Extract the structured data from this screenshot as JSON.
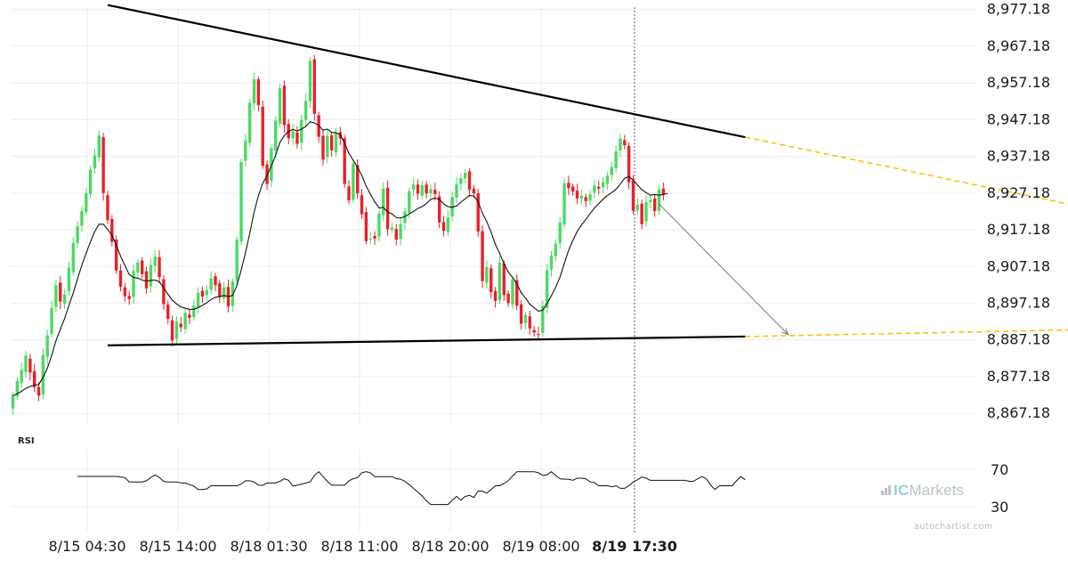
{
  "chart_data": {
    "type": "candlestick",
    "price_axis": {
      "range": [
        8862.18,
        8980.18
      ],
      "tick_labels": [
        "8,977.18",
        "8,967.18",
        "8,957.18",
        "8,947.18",
        "8,937.18",
        "8,927.18",
        "8,917.18",
        "8,907.18",
        "8,897.18",
        "8,887.18",
        "8,877.18",
        "8,867.18"
      ]
    },
    "time_axis": {
      "tick_labels": [
        "8/15 04:30",
        "8/15 14:00",
        "8/18 01:30",
        "8/18 11:00",
        "8/18 20:00",
        "8/19 08:00",
        "8/19 17:30"
      ],
      "current_label": "8/19 17:30"
    },
    "candles": [
      [
        8868.5,
        8872.2,
        8866.8,
        8873.0
      ],
      [
        8871.8,
        8876.0,
        8870.9,
        8877.1
      ],
      [
        8875.5,
        8879.0,
        8874.0,
        8881.0
      ],
      [
        8878.4,
        8882.9,
        8876.9,
        8884.2
      ],
      [
        8882.1,
        8878.3,
        8876.1,
        8883.4
      ],
      [
        8878.7,
        8874.3,
        8873.0,
        8880.6
      ],
      [
        8874.4,
        8872.0,
        8870.5,
        8875.7
      ],
      [
        8872.3,
        8883.2,
        8871.0,
        8884.8
      ],
      [
        8882.6,
        8888.4,
        8880.5,
        8890.1
      ],
      [
        8888.9,
        8895.9,
        8887.9,
        8897.8
      ],
      [
        8896.2,
        8902.1,
        8894.8,
        8903.6
      ],
      [
        8902.8,
        8897.6,
        8895.6,
        8904.6
      ],
      [
        8897.1,
        8899.6,
        8895.6,
        8900.9
      ],
      [
        8900.5,
        8906.8,
        8899.2,
        8908.6
      ],
      [
        8905.6,
        8913.6,
        8904.6,
        8915.2
      ],
      [
        8913.6,
        8918.1,
        8912.3,
        8919.6
      ],
      [
        8918.3,
        8922.3,
        8916.6,
        8923.7
      ],
      [
        8922.0,
        8927.1,
        8921.1,
        8928.5
      ],
      [
        8926.9,
        8933.6,
        8925.7,
        8934.6
      ],
      [
        8933.9,
        8937.5,
        8932.4,
        8939.3
      ],
      [
        8936.9,
        8942.9,
        8935.6,
        8944.3
      ],
      [
        8942.4,
        8927.2,
        8925.1,
        8943.6
      ],
      [
        8926.6,
        8919.8,
        8918.7,
        8927.8
      ],
      [
        8920.1,
        8913.9,
        8912.7,
        8921.2
      ],
      [
        8914.5,
        8906.1,
        8905.2,
        8915.6
      ],
      [
        8906.1,
        8901.7,
        8900.4,
        8907.8
      ],
      [
        8901.5,
        8899.1,
        8897.6,
        8902.6
      ],
      [
        8899.2,
        8898.3,
        8896.7,
        8900.5
      ],
      [
        8898.9,
        8906.0,
        8897.0,
        8907.7
      ],
      [
        8905.5,
        8908.3,
        8903.8,
        8909.2
      ],
      [
        8908.8,
        8905.1,
        8903.9,
        8909.7
      ],
      [
        8905.9,
        8901.2,
        8899.7,
        8907.2
      ],
      [
        8901.8,
        8907.6,
        8900.0,
        8909.5
      ],
      [
        8907.4,
        8909.8,
        8905.5,
        8911.7
      ],
      [
        8909.7,
        8904.3,
        8902.6,
        8911.6
      ],
      [
        8903.7,
        8896.9,
        8895.4,
        8904.8
      ],
      [
        8896.8,
        8892.9,
        8891.4,
        8897.9
      ],
      [
        8892.5,
        8887.0,
        8885.4,
        8893.8
      ],
      [
        8887.5,
        8892.2,
        8886.2,
        8893.6
      ],
      [
        8891.6,
        8890.6,
        8889.3,
        8893.4
      ],
      [
        8890.1,
        8894.6,
        8888.9,
        8895.6
      ],
      [
        8894.1,
        8893.2,
        8891.5,
        8895.5
      ],
      [
        8893.4,
        8896.5,
        8892.4,
        8898.1
      ],
      [
        8895.9,
        8900.0,
        8894.3,
        8901.5
      ],
      [
        8900.6,
        8899.0,
        8897.2,
        8901.8
      ],
      [
        8899.4,
        8900.8,
        8897.8,
        8902.1
      ],
      [
        8900.8,
        8904.0,
        8899.5,
        8905.9
      ],
      [
        8904.5,
        8902.1,
        8900.5,
        8905.5
      ],
      [
        8902.6,
        8898.8,
        8897.3,
        8903.5
      ],
      [
        8898.5,
        8901.5,
        8897.3,
        8903.0
      ],
      [
        8901.6,
        8896.3,
        8894.6,
        8903.6
      ],
      [
        8896.4,
        8903.1,
        8894.8,
        8903.9
      ],
      [
        8903.2,
        8914.5,
        8901.9,
        8915.4
      ],
      [
        8914.0,
        8935.6,
        8913.0,
        8936.6
      ],
      [
        8936.0,
        8941.5,
        8934.4,
        8943.3
      ],
      [
        8940.9,
        8951.8,
        8939.8,
        8952.8
      ],
      [
        8951.6,
        8958.2,
        8949.7,
        8960.0
      ],
      [
        8958.2,
        8951.1,
        8949.4,
        8958.9
      ],
      [
        8950.7,
        8934.6,
        8933.8,
        8952.4
      ],
      [
        8935.0,
        8929.7,
        8928.1,
        8936.1
      ],
      [
        8930.5,
        8939.4,
        8928.8,
        8940.4
      ],
      [
        8938.8,
        8946.9,
        8936.7,
        8948.1
      ],
      [
        8946.0,
        8955.7,
        8945.1,
        8957.0
      ],
      [
        8956.4,
        8945.7,
        8943.6,
        8957.8
      ],
      [
        8946.0,
        8942.1,
        8940.5,
        8947.3
      ],
      [
        8942.1,
        8944.0,
        8940.2,
        8946.0
      ],
      [
        8943.7,
        8940.6,
        8939.3,
        8945.4
      ],
      [
        8940.9,
        8947.1,
        8938.8,
        8948.6
      ],
      [
        8947.1,
        8952.3,
        8945.2,
        8954.3
      ],
      [
        8952.2,
        8963.2,
        8950.4,
        8964.1
      ],
      [
        8963.6,
        8948.8,
        8946.9,
        8964.8
      ],
      [
        8948.4,
        8942.5,
        8940.9,
        8949.3
      ],
      [
        8942.8,
        8936.3,
        8934.6,
        8944.5
      ],
      [
        8937.0,
        8942.8,
        8935.3,
        8944.4
      ],
      [
        8942.9,
        8938.8,
        8937.1,
        8943.8
      ],
      [
        8938.3,
        8943.5,
        8937.0,
        8944.9
      ],
      [
        8943.8,
        8942.0,
        8940.2,
        8945.2
      ],
      [
        8942.1,
        8929.7,
        8928.6,
        8943.0
      ],
      [
        8929.0,
        8925.2,
        8924.2,
        8930.7
      ],
      [
        8925.4,
        8935.2,
        8924.5,
        8936.3
      ],
      [
        8934.8,
        8927.1,
        8925.6,
        8936.4
      ],
      [
        8926.6,
        8921.4,
        8920.1,
        8928.3
      ],
      [
        8922.0,
        8914.1,
        8913.2,
        8923.4
      ],
      [
        8914.6,
        8914.8,
        8913.2,
        8916.7
      ],
      [
        8915.5,
        8914.8,
        8913.1,
        8916.8
      ],
      [
        8915.3,
        8921.6,
        8914.0,
        8922.5
      ],
      [
        8921.2,
        8928.4,
        8919.5,
        8930.1
      ],
      [
        8928.6,
        8917.3,
        8915.6,
        8930.6
      ],
      [
        8917.2,
        8917.8,
        8916.3,
        8919.2
      ],
      [
        8917.4,
        8914.5,
        8912.9,
        8918.8
      ],
      [
        8914.7,
        8918.8,
        8913.0,
        8920.2
      ],
      [
        8919.0,
        8922.2,
        8917.1,
        8923.2
      ],
      [
        8921.8,
        8927.7,
        8920.2,
        8928.7
      ],
      [
        8928.0,
        8929.5,
        8926.3,
        8931.3
      ],
      [
        8929.5,
        8927.0,
        8925.4,
        8930.9
      ],
      [
        8926.5,
        8929.3,
        8925.5,
        8930.6
      ],
      [
        8929.5,
        8927.1,
        8925.7,
        8930.5
      ],
      [
        8927.1,
        8928.2,
        8926.0,
        8929.5
      ],
      [
        8928.1,
        8926.9,
        8925.2,
        8930.1
      ],
      [
        8926.3,
        8919.2,
        8917.6,
        8927.7
      ],
      [
        8919.3,
        8916.9,
        8915.4,
        8921.0
      ],
      [
        8916.6,
        8920.5,
        8915.4,
        8922.5
      ],
      [
        8920.9,
        8926.1,
        8919.5,
        8927.5
      ],
      [
        8926.0,
        8929.5,
        8924.5,
        8931.5
      ],
      [
        8929.7,
        8931.2,
        8928.0,
        8932.4
      ],
      [
        8931.2,
        8932.7,
        8929.8,
        8933.8
      ],
      [
        8933.1,
        8928.1,
        8926.2,
        8934.0
      ],
      [
        8928.4,
        8927.1,
        8925.8,
        8929.4
      ],
      [
        8927.1,
        8916.7,
        8915.3,
        8928.4
      ],
      [
        8916.8,
        8903.2,
        8901.3,
        8918.4
      ],
      [
        8902.7,
        8907.0,
        8901.1,
        8908.8
      ],
      [
        8906.7,
        8900.2,
        8898.5,
        8907.8
      ],
      [
        8900.5,
        8897.8,
        8896.0,
        8901.6
      ],
      [
        8898.0,
        8908.2,
        8896.9,
        8910.1
      ],
      [
        8908.0,
        8899.4,
        8897.8,
        8908.9
      ],
      [
        8899.8,
        8897.2,
        8896.2,
        8900.6
      ],
      [
        8896.8,
        8903.6,
        8895.5,
        8904.5
      ],
      [
        8903.5,
        8896.5,
        8895.3,
        8905.1
      ],
      [
        8896.9,
        8891.6,
        8890.0,
        8898.1
      ],
      [
        8891.8,
        8894.0,
        8890.1,
        8894.9
      ],
      [
        8893.6,
        8890.3,
        8888.6,
        8895.2
      ],
      [
        8889.9,
        8889.2,
        8888.1,
        8891.0
      ],
      [
        8888.8,
        8888.7,
        8887.5,
        8890.8
      ],
      [
        8889.1,
        8896.5,
        8888.0,
        8897.9
      ],
      [
        8895.9,
        8906.2,
        8894.4,
        8907.8
      ],
      [
        8906.4,
        8910.2,
        8904.4,
        8911.5
      ],
      [
        8910.0,
        8913.4,
        8908.6,
        8914.7
      ],
      [
        8913.5,
        8919.2,
        8911.9,
        8920.6
      ],
      [
        8918.6,
        8929.8,
        8917.7,
        8931.1
      ],
      [
        8930.0,
        8928.5,
        8926.6,
        8931.9
      ],
      [
        8929.0,
        8927.6,
        8926.4,
        8929.8
      ],
      [
        8927.8,
        8925.7,
        8924.2,
        8929.7
      ],
      [
        8925.7,
        8926.5,
        8924.0,
        8928.1
      ],
      [
        8926.1,
        8925.0,
        8923.3,
        8927.0
      ],
      [
        8925.1,
        8926.8,
        8923.8,
        8928.0
      ],
      [
        8927.3,
        8929.2,
        8925.8,
        8930.6
      ],
      [
        8928.9,
        8928.4,
        8926.7,
        8930.6
      ],
      [
        8928.8,
        8930.2,
        8927.1,
        8931.5
      ],
      [
        8929.7,
        8931.9,
        8928.0,
        8933.0
      ],
      [
        8932.1,
        8934.3,
        8930.4,
        8935.7
      ],
      [
        8934.0,
        8938.5,
        8932.7,
        8940.1
      ],
      [
        8938.8,
        8942.0,
        8937.0,
        8943.4
      ],
      [
        8941.6,
        8940.2,
        8939.1,
        8943.0
      ],
      [
        8940.0,
        8930.1,
        8928.3,
        8941.0
      ],
      [
        8930.6,
        8922.4,
        8921.4,
        8932.1
      ],
      [
        8922.4,
        8924.0,
        8921.3,
        8925.9
      ],
      [
        8924.3,
        8918.7,
        8917.4,
        8925.4
      ],
      [
        8919.5,
        8924.7,
        8918.0,
        8926.4
      ],
      [
        8924.7,
        8925.3,
        8923.0,
        8926.7
      ],
      [
        8925.7,
        8922.3,
        8920.7,
        8926.9
      ],
      [
        8922.4,
        8928.2,
        8921.3,
        8929.3
      ],
      [
        8928.4,
        8926.8,
        8925.2,
        8930.0
      ]
    ],
    "moving_average": [
      8872.0,
      8872.5,
      8873.2,
      8874.0,
      8874.5,
      8874.9,
      8875.0,
      8877.0,
      8879.5,
      8883.0,
      8887.0,
      8890.0,
      8893.0,
      8896.5,
      8900.0,
      8903.8,
      8907.5,
      8910.8,
      8913.9,
      8916.7,
      8918.7,
      8918.7,
      8917.3,
      8915.7,
      8913.0,
      8910.0,
      8907.5,
      8905.0,
      8904.2,
      8904.0,
      8903.5,
      8903.2,
      8903.4,
      8903.5,
      8903.0,
      8901.4,
      8899.6,
      8898.0,
      8897.0,
      8896.2,
      8895.8,
      8895.5,
      8895.5,
      8896.0,
      8896.6,
      8897.3,
      8898.2,
      8898.8,
      8899.0,
      8899.3,
      8899.0,
      8899.3,
      8902.0,
      8906.2,
      8911.0,
      8916.3,
      8922.0,
      8926.5,
      8929.8,
      8932.0,
      8934.6,
      8937.5,
      8941.0,
      8942.8,
      8944.0,
      8944.5,
      8944.1,
      8944.6,
      8945.3,
      8946.6,
      8946.3,
      8945.6,
      8944.3,
      8944.6,
      8943.7,
      8943.6,
      8943.1,
      8940.8,
      8938.0,
      8936.1,
      8934.2,
      8932.0,
      8929.1,
      8926.9,
      8924.8,
      8923.1,
      8923.3,
      8922.0,
      8921.5,
      8920.5,
      8920.4,
      8920.8,
      8921.5,
      8922.2,
      8923.0,
      8923.5,
      8924.3,
      8925.5,
      8925.8,
      8925.5,
      8924.2,
      8923.5,
      8923.3,
      8923.7,
      8924.7,
      8925.6,
      8926.5,
      8926.4,
      8924.8,
      8921.7,
      8919.4,
      8916.6,
      8913.2,
      8910.8,
      8907.9,
      8905.7,
      8904.2,
      8902.5,
      8900.0,
      8898.6,
      8896.9,
      8896.0,
      8895.0,
      8895.3,
      8897.1,
      8899.2,
      8901.5,
      8904.3,
      8908.0,
      8911.6,
      8914.3,
      8916.7,
      8918.5,
      8920.0,
      8921.6,
      8923.1,
      8924.3,
      8925.5,
      8926.5,
      8927.3,
      8928.2,
      8929.6,
      8931.2,
      8931.7,
      8930.7,
      8929.4,
      8928.1,
      8927.3,
      8926.6,
      8926.8,
      8926.6,
      8926.8,
      8927.1
    ],
    "trendlines": {
      "resistance": [
        [
          0,
          8978.4
        ],
        [
          148,
          8942.4
        ]
      ],
      "support": [
        [
          0,
          8885.7
        ],
        [
          148,
          8888.1
        ]
      ],
      "projected_resistance": [
        [
          148,
          8942.4
        ],
        [
          223,
          8924.2
        ]
      ],
      "projected_support": [
        [
          148,
          8888.1
        ],
        [
          223,
          8889.9
        ]
      ],
      "forecast_arrow": [
        [
          150,
          8924.2
        ],
        [
          180,
          8888.6
        ]
      ]
    },
    "rsi": {
      "label": "RSI",
      "tick_labels": [
        "70",
        "30"
      ],
      "range": [
        20,
        100
      ],
      "values": [
        62.4,
        62.4,
        62.4,
        62.4,
        62.4,
        62.4,
        62.4,
        62.4,
        62.4,
        62.4,
        61.7,
        61.1,
        56.5,
        56.5,
        56.5,
        56.5,
        57.7,
        61.1,
        64.0,
        61.1,
        57.1,
        56.5,
        56.5,
        56.5,
        55.3,
        55.3,
        53.6,
        51.9,
        48.4,
        48.4,
        49.0,
        52.4,
        52.4,
        52.4,
        52.4,
        52.4,
        52.4,
        52.4,
        54.2,
        57.7,
        57.7,
        56.5,
        53.0,
        53.0,
        55.3,
        55.3,
        55.3,
        57.1,
        59.9,
        58.2,
        51.9,
        53.0,
        54.2,
        55.3,
        56.5,
        63.4,
        67.4,
        62.2,
        57.1,
        53.0,
        53.0,
        53.0,
        53.0,
        57.7,
        59.9,
        61.1,
        66.3,
        67.4,
        66.3,
        62.2,
        62.2,
        62.2,
        62.2,
        62.2,
        59.9,
        59.4,
        57.1,
        53.6,
        49.6,
        45.6,
        41.5,
        36.3,
        32.3,
        32.3,
        32.3,
        32.3,
        32.3,
        37.0,
        41.0,
        37.0,
        41.0,
        42.1,
        39.8,
        46.7,
        46.7,
        44.4,
        48.4,
        52.4,
        52.4,
        54.8,
        57.7,
        62.8,
        67.4,
        67.4,
        67.4,
        67.4,
        67.4,
        66.3,
        63.4,
        64.0,
        67.4,
        63.4,
        59.9,
        59.4,
        59.4,
        58.2,
        60.5,
        60.5,
        59.9,
        56.5,
        55.9,
        52.4,
        52.4,
        52.4,
        51.3,
        52.4,
        49.6,
        49.6,
        52.4,
        56.5,
        58.8,
        61.7,
        60.5,
        58.2,
        58.2,
        58.2,
        58.2,
        58.2,
        58.2,
        58.2,
        58.2,
        58.2,
        57.1,
        57.1,
        59.9,
        62.2,
        59.9,
        53.0,
        48.4,
        52.4,
        52.4,
        52.4,
        52.4,
        57.7,
        62.2,
        58.8
      ]
    },
    "colors": {
      "up": "#4cd964",
      "down": "#e8202a",
      "trend": "#000000",
      "projection": "#ffc107",
      "arrow": "#7a7a7a"
    }
  },
  "branding": {
    "logo_prefix": "IC",
    "logo_suffix": "Markets",
    "watermark": "autochartist.com"
  }
}
